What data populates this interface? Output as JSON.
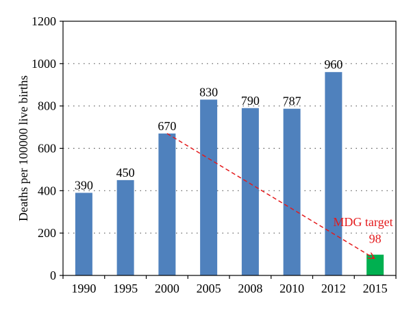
{
  "chart_data": {
    "type": "bar",
    "categories": [
      "1990",
      "1995",
      "2000",
      "2005",
      "2008",
      "2010",
      "2012",
      "2015"
    ],
    "values": [
      390,
      450,
      670,
      830,
      790,
      787,
      960,
      98
    ],
    "data_labels": [
      "390",
      "450",
      "670",
      "830",
      "790",
      "787",
      "960",
      "98"
    ],
    "bar_colors": [
      "#4f81bd",
      "#4f81bd",
      "#4f81bd",
      "#4f81bd",
      "#4f81bd",
      "#4f81bd",
      "#4f81bd",
      "#00b050"
    ],
    "xlabel": "",
    "ylabel": "Deaths per 100000 live births",
    "ylim": [
      0,
      1200
    ],
    "yticks": [
      0,
      200,
      400,
      600,
      800,
      1000,
      1200
    ],
    "ytick_labels": [
      "0",
      "200",
      "400",
      "600",
      "800",
      "1000",
      "1200"
    ],
    "grid": "horizontal dotted",
    "annotation": {
      "text": "MDG target",
      "color": "#e41a1c",
      "arrow_from": {
        "category": "2000",
        "value": 670
      },
      "arrow_to": {
        "category": "2015",
        "value": 98
      }
    }
  }
}
